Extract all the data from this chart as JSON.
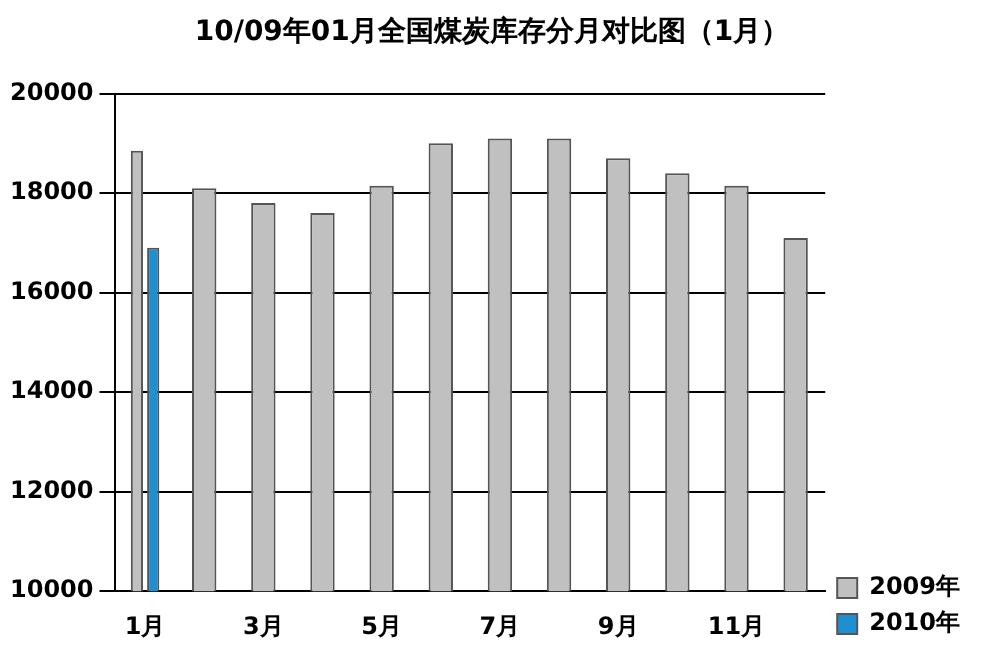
{
  "chart_data": {
    "type": "bar",
    "title": "10/09年01月全国煤炭库存分月对比图（1月）",
    "categories": [
      "1月",
      null,
      "3月",
      null,
      "5月",
      null,
      "7月",
      null,
      "9月",
      null,
      "11月",
      null
    ],
    "series": [
      {
        "name": "2009年",
        "color": "#c0c0c0",
        "values": [
          18850,
          18100,
          17800,
          17600,
          18150,
          19000,
          19100,
          19100,
          18700,
          18400,
          18150,
          17100
        ]
      },
      {
        "name": "2010年",
        "color": "#1e8fd0",
        "values": [
          16900,
          null,
          null,
          null,
          null,
          null,
          null,
          null,
          null,
          null,
          null,
          null
        ]
      }
    ],
    "ylim": [
      10000,
      20000
    ],
    "yticks": [
      10000,
      12000,
      14000,
      16000,
      18000,
      20000
    ],
    "grid": "y",
    "legend": "bottom right"
  }
}
